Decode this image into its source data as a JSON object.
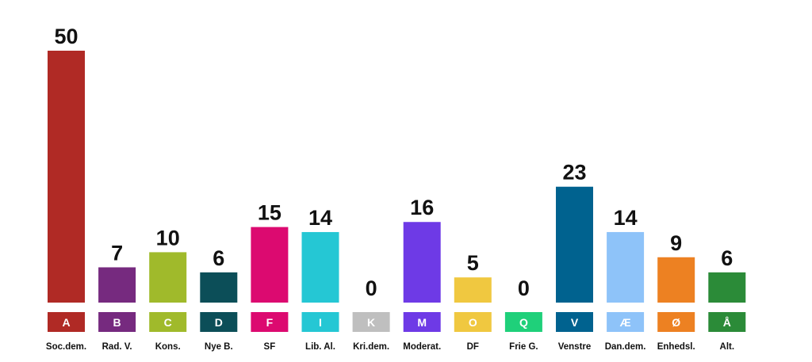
{
  "chart_data": {
    "type": "bar",
    "categories": [
      "A",
      "B",
      "C",
      "D",
      "F",
      "I",
      "K",
      "M",
      "O",
      "Q",
      "V",
      "Æ",
      "Ø",
      "Å"
    ],
    "names": [
      "Soc.dem.",
      "Rad. V.",
      "Kons.",
      "Nye B.",
      "SF",
      "Lib. Al.",
      "Kri.dem.",
      "Moderat.",
      "DF",
      "Frie G.",
      "Venstre",
      "Dan.dem.",
      "Enhedsl.",
      "Alt."
    ],
    "values": [
      50,
      7,
      10,
      6,
      15,
      14,
      0,
      16,
      5,
      0,
      23,
      14,
      9,
      6
    ],
    "colors": [
      "#b02a25",
      "#762a7f",
      "#a0ba2b",
      "#0c4e58",
      "#dc0a70",
      "#25c7d4",
      "#bfbfbf",
      "#6e3ae6",
      "#f0c840",
      "#1fd07a",
      "#00628f",
      "#8ec3f9",
      "#ed8122",
      "#2b8b38"
    ],
    "title": "",
    "xlabel": "",
    "ylabel": "",
    "ylim": [
      0,
      50
    ],
    "grid": false,
    "legend": "none"
  }
}
